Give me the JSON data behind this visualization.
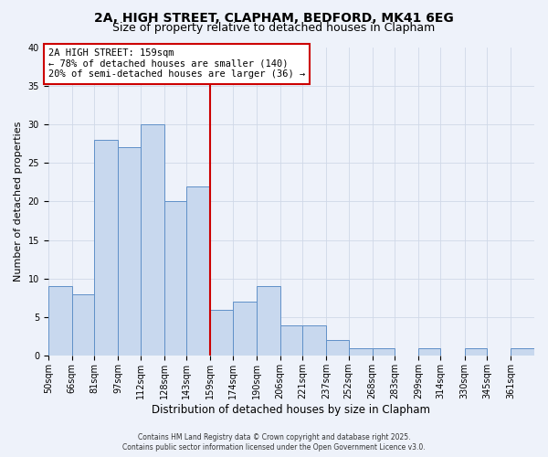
{
  "title": "2A, HIGH STREET, CLAPHAM, BEDFORD, MK41 6EG",
  "subtitle": "Size of property relative to detached houses in Clapham",
  "xlabel": "Distribution of detached houses by size in Clapham",
  "ylabel": "Number of detached properties",
  "bin_labels": [
    "50sqm",
    "66sqm",
    "81sqm",
    "97sqm",
    "112sqm",
    "128sqm",
    "143sqm",
    "159sqm",
    "174sqm",
    "190sqm",
    "206sqm",
    "221sqm",
    "237sqm",
    "252sqm",
    "268sqm",
    "283sqm",
    "299sqm",
    "314sqm",
    "330sqm",
    "345sqm",
    "361sqm"
  ],
  "bin_edges": [
    50,
    66,
    81,
    97,
    112,
    128,
    143,
    159,
    174,
    190,
    206,
    221,
    237,
    252,
    268,
    283,
    299,
    314,
    330,
    345,
    361
  ],
  "bar_heights": [
    9,
    8,
    28,
    27,
    30,
    20,
    22,
    6,
    7,
    9,
    4,
    4,
    2,
    1,
    1,
    0,
    1,
    0,
    1,
    0,
    1
  ],
  "bar_color": "#c8d8ee",
  "bar_edge_color": "#6090c8",
  "vline_x": 159,
  "vline_color": "#cc0000",
  "annotation_text": "2A HIGH STREET: 159sqm\n← 78% of detached houses are smaller (140)\n20% of semi-detached houses are larger (36) →",
  "annotation_box_color": "#ffffff",
  "annotation_box_edge": "#cc0000",
  "ylim": [
    0,
    40
  ],
  "yticks": [
    0,
    5,
    10,
    15,
    20,
    25,
    30,
    35,
    40
  ],
  "grid_color": "#d0d8e8",
  "bg_color": "#eef2fa",
  "footer_line1": "Contains HM Land Registry data © Crown copyright and database right 2025.",
  "footer_line2": "Contains public sector information licensed under the Open Government Licence v3.0.",
  "title_fontsize": 10,
  "subtitle_fontsize": 9,
  "xlabel_fontsize": 8.5,
  "ylabel_fontsize": 8,
  "tick_fontsize": 7,
  "annotation_fontsize": 7.5,
  "footer_fontsize": 5.5
}
